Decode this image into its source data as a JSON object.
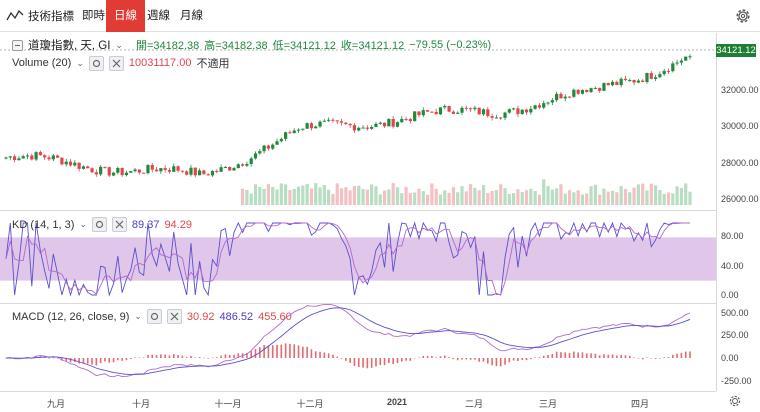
{
  "toolbar": {
    "brand_label": "技術指標",
    "tabs": [
      {
        "label": "即時",
        "active": false
      },
      {
        "label": "日線",
        "active": true
      },
      {
        "label": "週線",
        "active": false
      },
      {
        "label": "月線",
        "active": false
      }
    ]
  },
  "main_legend": {
    "symbol": "道瓊指數, 天, GI",
    "open_label": "開=34182.38",
    "high_label": "高=34182.38",
    "low_label": "低=34121.12",
    "close_label": "收=34121.12",
    "change_label": "−79.55 (−0.23%)",
    "last_price": "34121.12"
  },
  "volume_legend": {
    "name": "Volume (20)",
    "value": "10031117.00",
    "note": "不適用"
  },
  "kd_legend": {
    "name": "KD (14, 1, 3)",
    "k_value": "89.37",
    "d_value": "94.29"
  },
  "macd_legend": {
    "name": "MACD (12, 26, close, 9)",
    "macd_value": "30.92",
    "signal_value": "486.52",
    "hist_value": "455.60"
  },
  "price_axis": [
    "32000.00",
    "30000.00",
    "28000.00",
    "26000.00"
  ],
  "kd_axis": [
    "80.00",
    "40.00",
    "0.00"
  ],
  "macd_axis": [
    "500.00",
    "250.00",
    "0.00",
    "-250.00"
  ],
  "x_axis": [
    {
      "label": "九月",
      "bold": false
    },
    {
      "label": "十月",
      "bold": false
    },
    {
      "label": "十一月",
      "bold": false
    },
    {
      "label": "十二月",
      "bold": false
    },
    {
      "label": "2021",
      "bold": true
    },
    {
      "label": "二月",
      "bold": false
    },
    {
      "label": "三月",
      "bold": false
    },
    {
      "label": "四月",
      "bold": false
    }
  ],
  "colors": {
    "up": "#1e8a3c",
    "down": "#e0474c",
    "kd_band": "#d6b3e0",
    "k_line": "#5b4fd0",
    "d_line": "#b06ad0",
    "hist": "#e36a6e"
  },
  "chart_data": {
    "type": "line",
    "x": [
      "九月",
      "十月",
      "十一月",
      "十二月",
      "2021",
      "二月",
      "三月",
      "四月"
    ],
    "series": [
      {
        "values": [
          28500,
          28000,
          27500,
          29900,
          30600,
          31000,
          32000,
          33900
        ]
      }
    ],
    "ylim": [
      25000,
      34500
    ]
  }
}
